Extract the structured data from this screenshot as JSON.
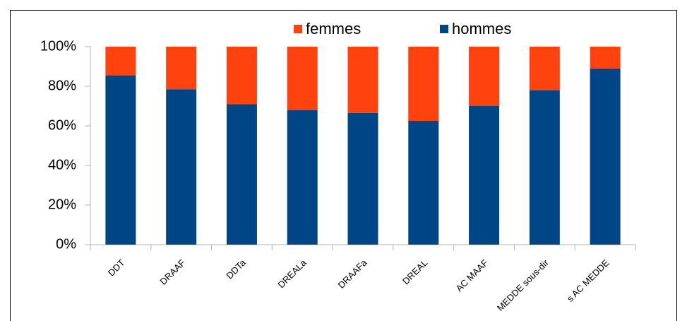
{
  "chart_data": {
    "type": "stacked_bar",
    "categories": [
      "DDT",
      "DRAAF",
      "DDTa",
      "DREALa",
      "DRAAFa",
      "DREAL",
      "AC MAAF",
      "MEDDE sous-dir",
      "s AC MEDDE"
    ],
    "series": [
      {
        "name": "hommes",
        "color": "#004586",
        "values": [
          85.5,
          78.5,
          71,
          68,
          66.5,
          62.5,
          70,
          78,
          89
        ]
      },
      {
        "name": "femmes",
        "color": "#ff420e",
        "values": [
          14.5,
          21.5,
          29,
          32,
          33.5,
          37.5,
          30,
          22,
          11
        ]
      }
    ],
    "ylim": [
      0,
      100
    ],
    "yticks": [
      {
        "value": 0,
        "label": "0%"
      },
      {
        "value": 20,
        "label": "20%"
      },
      {
        "value": 40,
        "label": "40%"
      },
      {
        "value": 60,
        "label": "60%"
      },
      {
        "value": 80,
        "label": "80%"
      },
      {
        "value": 100,
        "label": "100%"
      }
    ],
    "legend": "top"
  }
}
